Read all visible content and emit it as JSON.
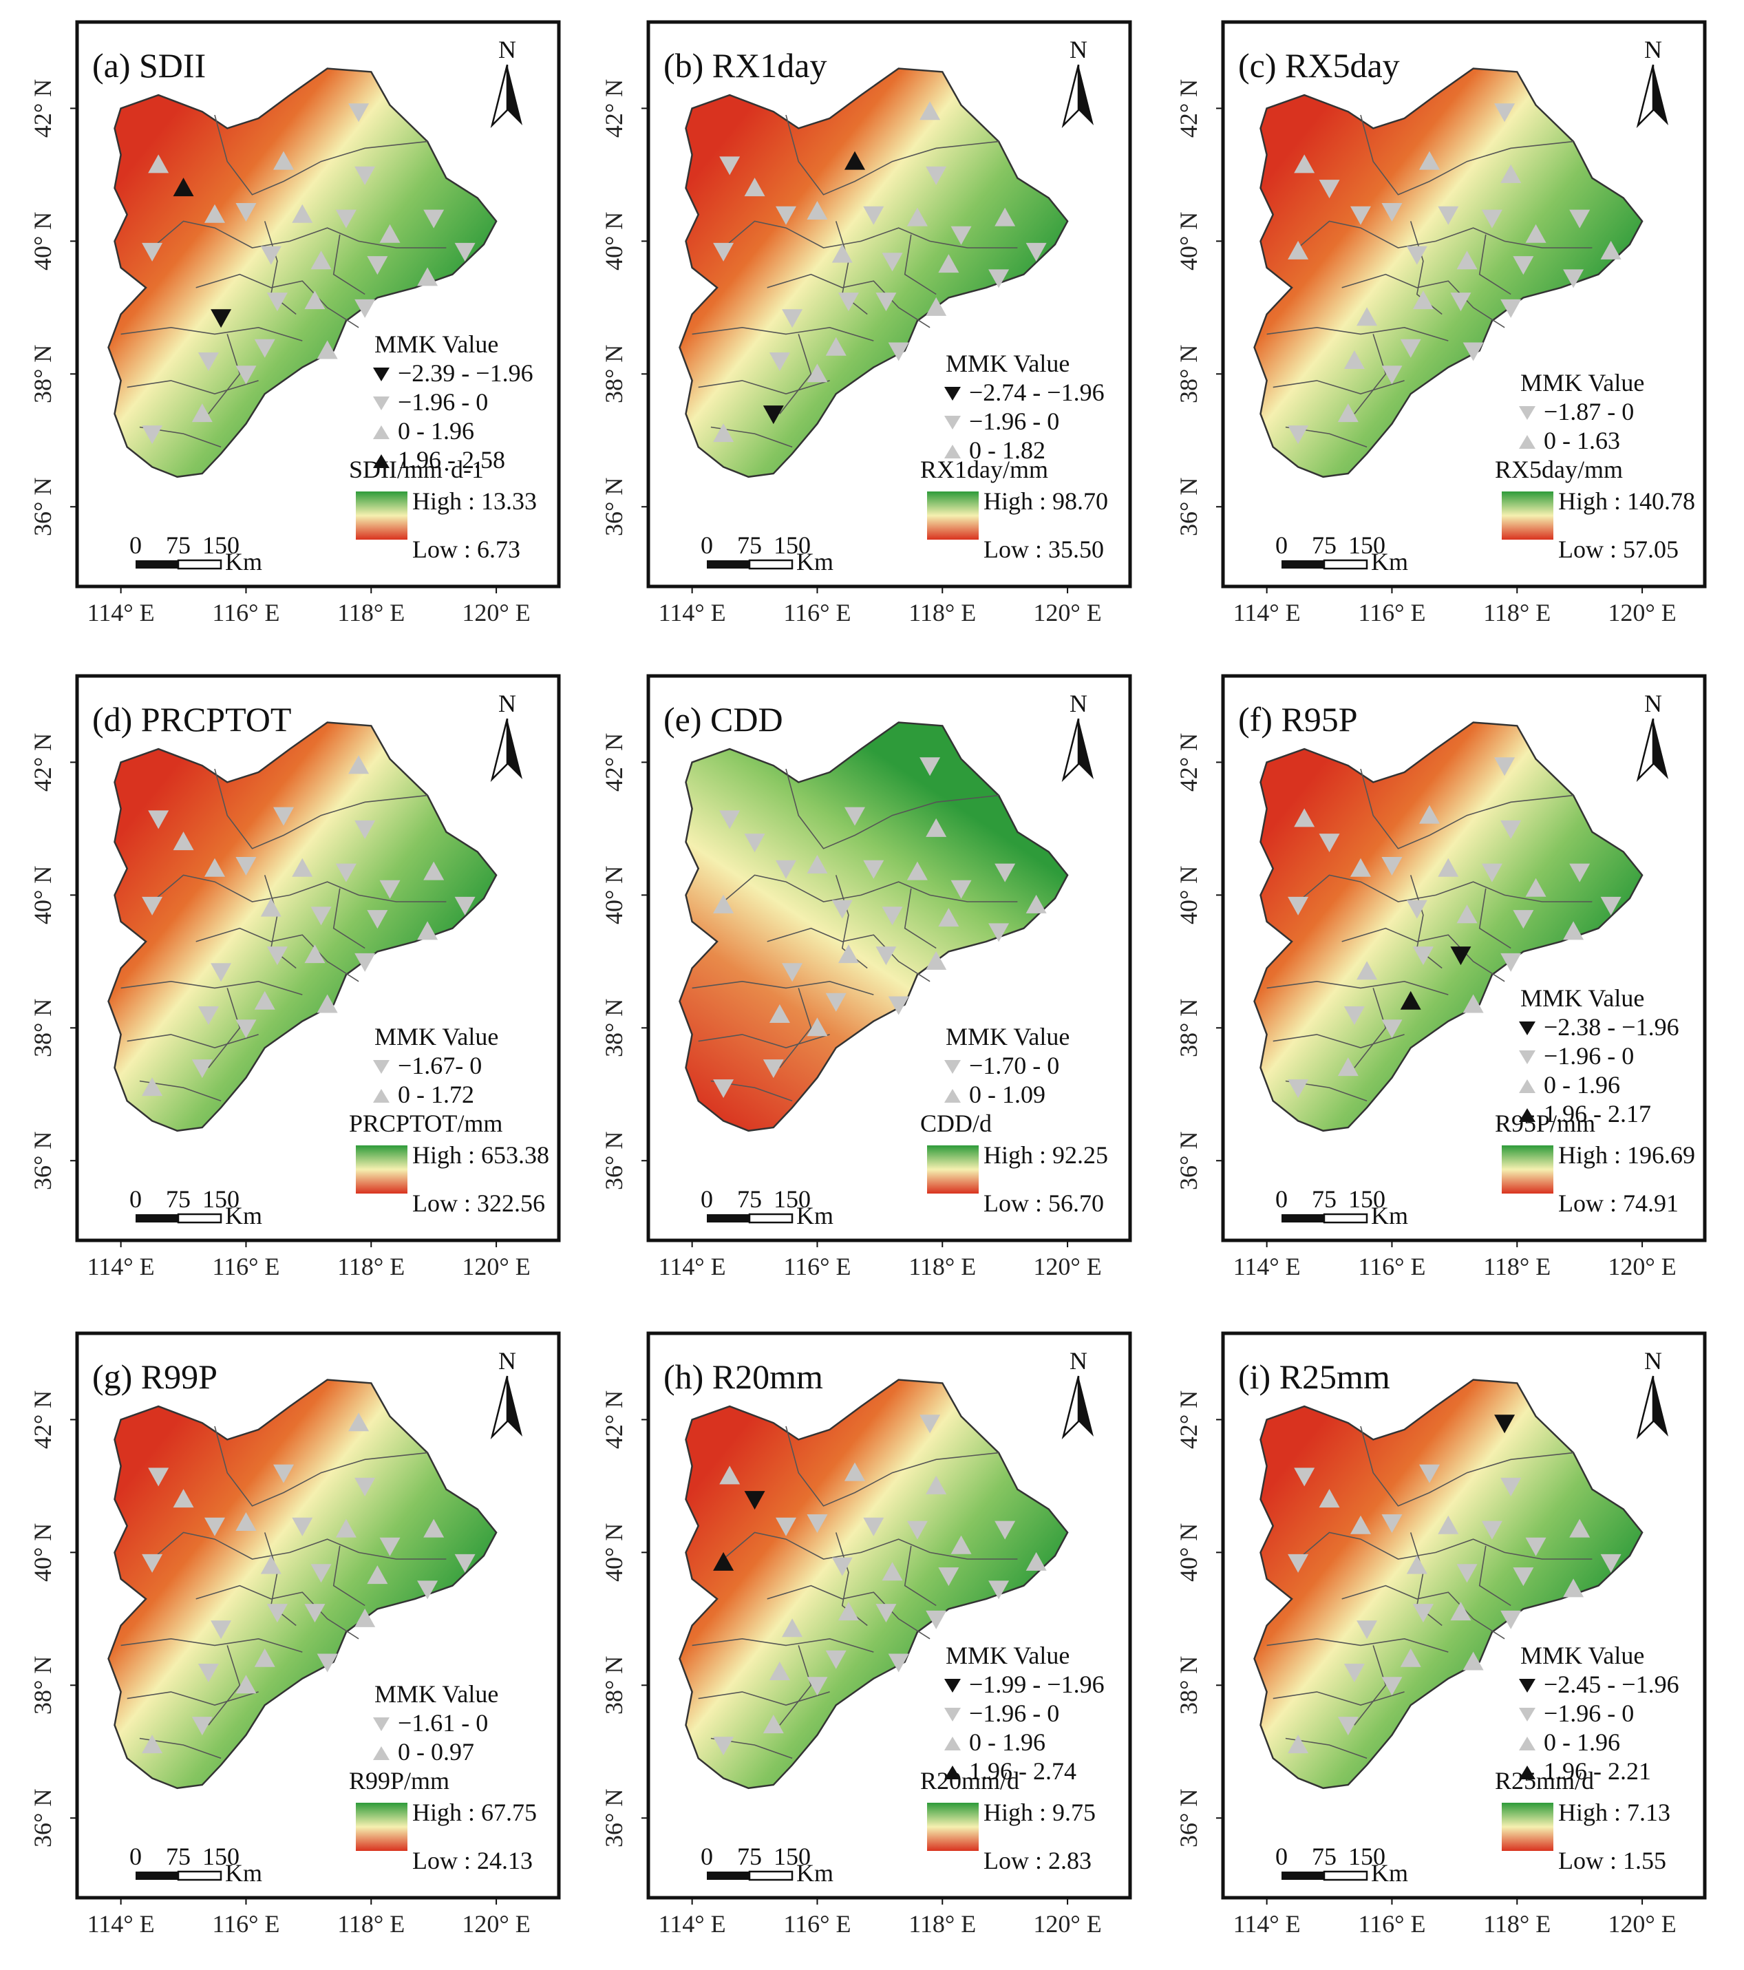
{
  "figure": {
    "x_ticks": [
      "114° E",
      "116° E",
      "118° E",
      "120° E"
    ],
    "y_ticks": [
      "42° N",
      "40° N",
      "38° N",
      "36° N"
    ],
    "north_label": "N",
    "scale_numbers": [
      "0",
      "75",
      "150"
    ],
    "scale_unit": "Km",
    "legend_title": "MMK Value"
  },
  "colors": {
    "high": "#2e9b3a",
    "mid": "#f5f0b0",
    "low": "#d9331f",
    "marker_light": "#c6c6c6",
    "marker_dark": "#111111",
    "frame": "#111111"
  },
  "panels": [
    {
      "label": "(a) SDII",
      "var_label": "SDII/mm·d-1",
      "high": "High : 13.33",
      "low": "Low : 6.73",
      "pattern": "nw_red",
      "mmk": [
        {
          "range": "−2.39 - −1.96",
          "symbol": "down",
          "shade": "dark"
        },
        {
          "range": "−1.96 - 0",
          "symbol": "down",
          "shade": "light"
        },
        {
          "range": "0 - 1.96",
          "symbol": "up",
          "shade": "light"
        },
        {
          "range": "1.96 - 2.58",
          "symbol": "up",
          "shade": "dark"
        }
      ]
    },
    {
      "label": "(b) RX1day",
      "var_label": "RX1day/mm",
      "high": "High : 98.70",
      "low": "Low : 35.50",
      "pattern": "nw_red",
      "mmk": [
        {
          "range": "−2.74 - −1.96",
          "symbol": "down",
          "shade": "dark"
        },
        {
          "range": "−1.96 - 0",
          "symbol": "down",
          "shade": "light"
        },
        {
          "range": "0 - 1.82",
          "symbol": "up",
          "shade": "light"
        }
      ]
    },
    {
      "label": "(c) RX5day",
      "var_label": "RX5day/mm",
      "high": "High : 140.78",
      "low": "Low : 57.05",
      "pattern": "nw_red",
      "mmk": [
        {
          "range": "−1.87 - 0",
          "symbol": "down",
          "shade": "light"
        },
        {
          "range": "0 - 1.63",
          "symbol": "up",
          "shade": "light"
        }
      ]
    },
    {
      "label": "(d) PRCPTOT",
      "var_label": "PRCPTOT/mm",
      "high": "High : 653.38",
      "low": "Low : 322.56",
      "pattern": "nw_red",
      "mmk": [
        {
          "range": "−1.67- 0",
          "symbol": "down",
          "shade": "light"
        },
        {
          "range": "0 - 1.72",
          "symbol": "up",
          "shade": "light"
        }
      ]
    },
    {
      "label": "(e) CDD",
      "var_label": "CDD/d",
      "high": "High : 92.25",
      "low": "Low : 56.70",
      "pattern": "sw_red",
      "mmk": [
        {
          "range": "−1.70 - 0",
          "symbol": "down",
          "shade": "light"
        },
        {
          "range": "0 - 1.09",
          "symbol": "up",
          "shade": "light"
        }
      ]
    },
    {
      "label": "(f) R95P",
      "var_label": "R95P/mm",
      "high": "High : 196.69",
      "low": "Low : 74.91",
      "pattern": "nw_red",
      "mmk": [
        {
          "range": "−2.38 - −1.96",
          "symbol": "down",
          "shade": "dark"
        },
        {
          "range": "−1.96 - 0",
          "symbol": "down",
          "shade": "light"
        },
        {
          "range": "0 - 1.96",
          "symbol": "up",
          "shade": "light"
        },
        {
          "range": "1.96 - 2.17",
          "symbol": "up",
          "shade": "dark"
        }
      ]
    },
    {
      "label": "(g) R99P",
      "var_label": "R99P/mm",
      "high": "High : 67.75",
      "low": "Low : 24.13",
      "pattern": "nw_red",
      "mmk": [
        {
          "range": "−1.61 - 0",
          "symbol": "down",
          "shade": "light"
        },
        {
          "range": "0 - 0.97",
          "symbol": "up",
          "shade": "light"
        }
      ]
    },
    {
      "label": "(h) R20mm",
      "var_label": "R20mm/d",
      "high": "High : 9.75",
      "low": "Low : 2.83",
      "pattern": "nw_red",
      "mmk": [
        {
          "range": "−1.99 - −1.96",
          "symbol": "down",
          "shade": "dark"
        },
        {
          "range": "−1.96 - 0",
          "symbol": "down",
          "shade": "light"
        },
        {
          "range": "0 - 1.96",
          "symbol": "up",
          "shade": "light"
        },
        {
          "range": "1.96 - 2.74",
          "symbol": "up",
          "shade": "dark"
        }
      ]
    },
    {
      "label": "(i) R25mm",
      "var_label": "R25mm/d",
      "high": "High : 7.13",
      "low": "Low : 1.55",
      "pattern": "nw_red",
      "mmk": [
        {
          "range": "−2.45 - −1.96",
          "symbol": "down",
          "shade": "dark"
        },
        {
          "range": "−1.96 - 0",
          "symbol": "down",
          "shade": "light"
        },
        {
          "range": "0 - 1.96",
          "symbol": "up",
          "shade": "light"
        },
        {
          "range": "1.96 - 2.21",
          "symbol": "up",
          "shade": "dark"
        }
      ]
    }
  ],
  "stations": [
    {
      "lon": 114.6,
      "lat": 41.15
    },
    {
      "lon": 115.0,
      "lat": 40.8
    },
    {
      "lon": 114.5,
      "lat": 39.85
    },
    {
      "lon": 115.5,
      "lat": 40.4
    },
    {
      "lon": 116.0,
      "lat": 40.45
    },
    {
      "lon": 116.6,
      "lat": 41.2
    },
    {
      "lon": 117.8,
      "lat": 41.95
    },
    {
      "lon": 117.9,
      "lat": 41.0
    },
    {
      "lon": 116.9,
      "lat": 40.4
    },
    {
      "lon": 117.6,
      "lat": 40.35
    },
    {
      "lon": 118.3,
      "lat": 40.1
    },
    {
      "lon": 119.0,
      "lat": 40.35
    },
    {
      "lon": 119.5,
      "lat": 39.85
    },
    {
      "lon": 118.9,
      "lat": 39.45
    },
    {
      "lon": 118.1,
      "lat": 39.65
    },
    {
      "lon": 117.2,
      "lat": 39.7
    },
    {
      "lon": 116.4,
      "lat": 39.8
    },
    {
      "lon": 116.5,
      "lat": 39.1
    },
    {
      "lon": 117.1,
      "lat": 39.1
    },
    {
      "lon": 117.9,
      "lat": 39.0
    },
    {
      "lon": 115.6,
      "lat": 38.85
    },
    {
      "lon": 116.3,
      "lat": 38.4
    },
    {
      "lon": 115.4,
      "lat": 38.2
    },
    {
      "lon": 117.3,
      "lat": 38.35
    },
    {
      "lon": 116.0,
      "lat": 38.0
    },
    {
      "lon": 115.3,
      "lat": 37.4
    },
    {
      "lon": 114.5,
      "lat": 37.1
    }
  ]
}
